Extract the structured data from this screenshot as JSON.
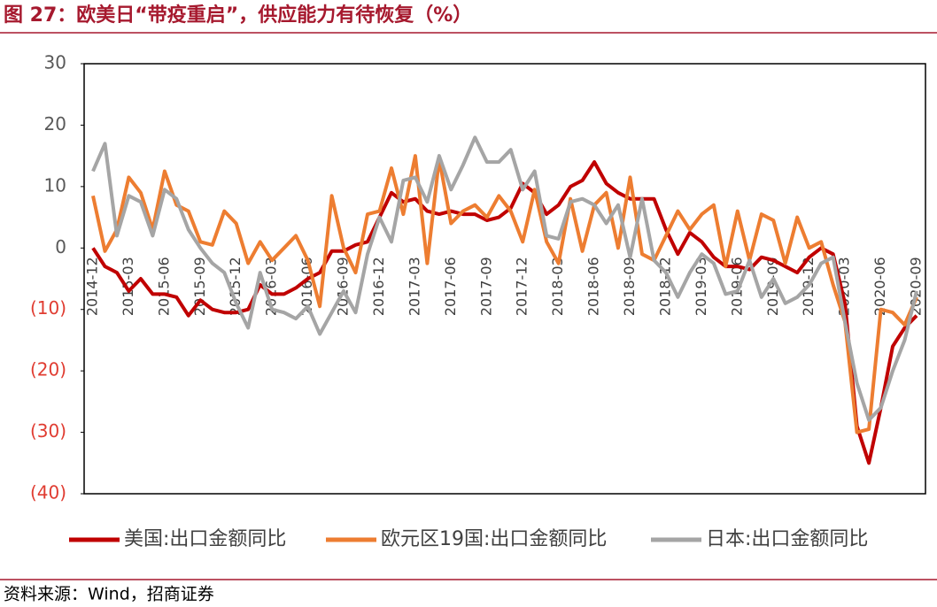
{
  "chart_data": {
    "type": "line",
    "title": "图 27：欧美日“带疫重启”，供应能力有待恢复（%）",
    "source": "资料来源：Wind，招商证券",
    "categories": [
      "2014-12",
      null,
      null,
      "2015-03",
      null,
      null,
      "2015-06",
      null,
      null,
      "2015-09",
      null,
      null,
      "2015-12",
      null,
      null,
      "2016-03",
      null,
      null,
      "2016-06",
      null,
      null,
      "2016-09",
      null,
      null,
      "2016-12",
      null,
      null,
      "2017-03",
      null,
      null,
      "2017-06",
      null,
      null,
      "2017-09",
      null,
      null,
      "2017-12",
      null,
      null,
      "2018-03",
      null,
      null,
      "2018-06",
      null,
      null,
      "2018-09",
      null,
      null,
      "2018-12",
      null,
      null,
      "2019-03",
      null,
      null,
      "2019-06",
      null,
      null,
      "2019-09",
      null,
      null,
      "2019-12",
      null,
      null,
      "2020-03",
      null,
      null,
      "2020-06",
      null,
      null,
      "2020-09"
    ],
    "series": [
      {
        "name": "美国:出口金额同比",
        "color": "#c00000",
        "values": [
          0,
          -3,
          -4,
          -7,
          -5,
          -7.5,
          -7.5,
          -8,
          -11,
          -8.5,
          -10,
          -10.5,
          -10.5,
          -10,
          -6,
          -7.5,
          -7.5,
          -6.5,
          -5,
          -4,
          -0.5,
          -0.5,
          0.5,
          1,
          5,
          9,
          7.5,
          8,
          6,
          5.5,
          6,
          5.5,
          5.5,
          4.5,
          5,
          6.5,
          10.5,
          9,
          5.5,
          7,
          10,
          11,
          14,
          10.5,
          9,
          8,
          8,
          8,
          3,
          -1,
          2.5,
          1,
          -1.5,
          -3,
          -3,
          -3.5,
          -1.5,
          -2,
          -3,
          -4,
          -1.5,
          0,
          -1,
          -9,
          -29,
          -35,
          -26,
          -16,
          -13,
          -11
        ]
      },
      {
        "name": "欧元区19国:出口金额同比",
        "color": "#ed7d31",
        "values": [
          8.5,
          -0.5,
          3,
          11.5,
          9,
          3,
          12.5,
          7,
          6,
          1,
          0.5,
          6,
          4,
          -2.5,
          1,
          -2,
          0,
          2,
          -2,
          -9.5,
          8.5,
          0,
          -4,
          5.5,
          6,
          13,
          5.5,
          15,
          -2.5,
          14.5,
          4,
          6,
          7,
          5,
          8.5,
          6,
          1,
          9.5,
          1,
          -2.5,
          8,
          -0.5,
          7,
          9,
          0,
          11.5,
          -1,
          -2,
          2,
          6,
          3,
          5.5,
          7,
          -3,
          6,
          -2,
          5.5,
          4.5,
          -2.5,
          5,
          0,
          1,
          -6,
          -12,
          -30,
          -29.5,
          -10,
          -10.5,
          -12.5,
          -8
        ]
      },
      {
        "name": "日本:出口金额同比",
        "color": "#a5a5a5",
        "values": [
          12.5,
          17,
          2,
          8.5,
          7.5,
          2,
          9.5,
          8,
          3,
          0,
          -2.5,
          -4,
          -9,
          -13,
          -4,
          -10,
          -10.5,
          -11.5,
          -9.5,
          -14,
          -10.5,
          -7,
          -10.5,
          -1,
          5,
          1,
          11,
          11.5,
          7.5,
          15,
          9.5,
          13.5,
          18,
          14,
          14,
          16,
          9.5,
          12.5,
          2,
          1.5,
          7.5,
          8,
          7,
          4,
          7,
          -1.5,
          8,
          -2,
          -4,
          -8,
          -4,
          -1,
          -2.5,
          -7.5,
          -7,
          -2,
          -8,
          -5,
          -9,
          -8,
          -6,
          -2.5,
          -1.5,
          -12,
          -22,
          -28,
          -26,
          -20,
          -15,
          -7
        ]
      }
    ],
    "ylim": [
      -40,
      30
    ],
    "yticks": [
      30,
      20,
      10,
      0,
      {
        "value": -10,
        "label": "(10)"
      },
      {
        "value": -20,
        "label": "(20)"
      },
      {
        "value": -30,
        "label": "(30)"
      },
      {
        "value": -40,
        "label": "(40)"
      }
    ],
    "negative_tick_color": "#e03c31",
    "grid": false,
    "legend": "bottom"
  }
}
